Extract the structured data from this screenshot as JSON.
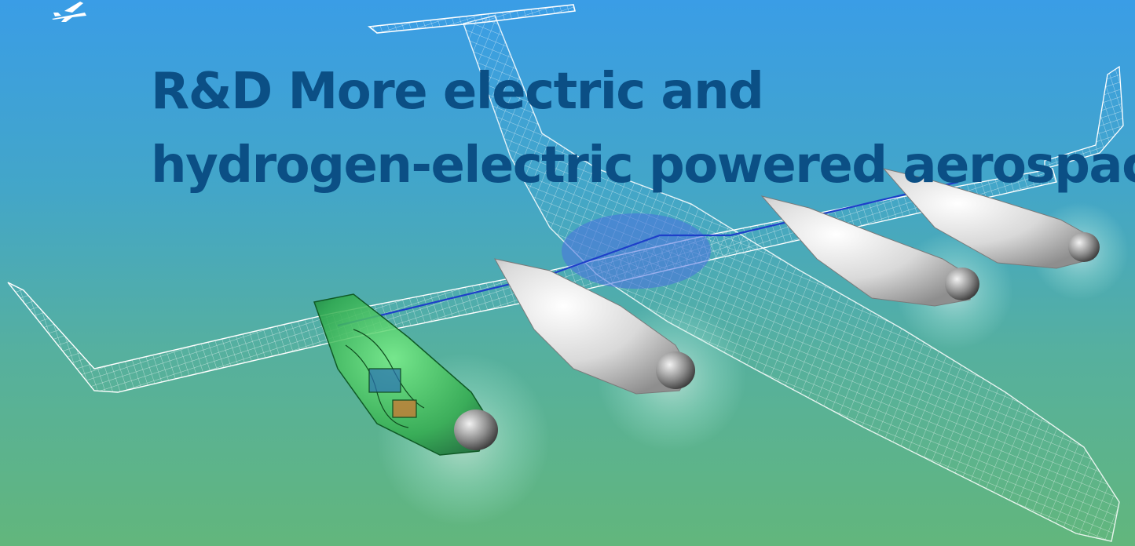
{
  "hero": {
    "title_line1": "R&D More electric and",
    "title_line2": "hydrogen-electric powered aerospac",
    "background_top": "#3a9de6",
    "background_bottom": "#62b67c",
    "title_color": "#0b4f85"
  },
  "logo": {
    "icon": "airplane-icon"
  }
}
